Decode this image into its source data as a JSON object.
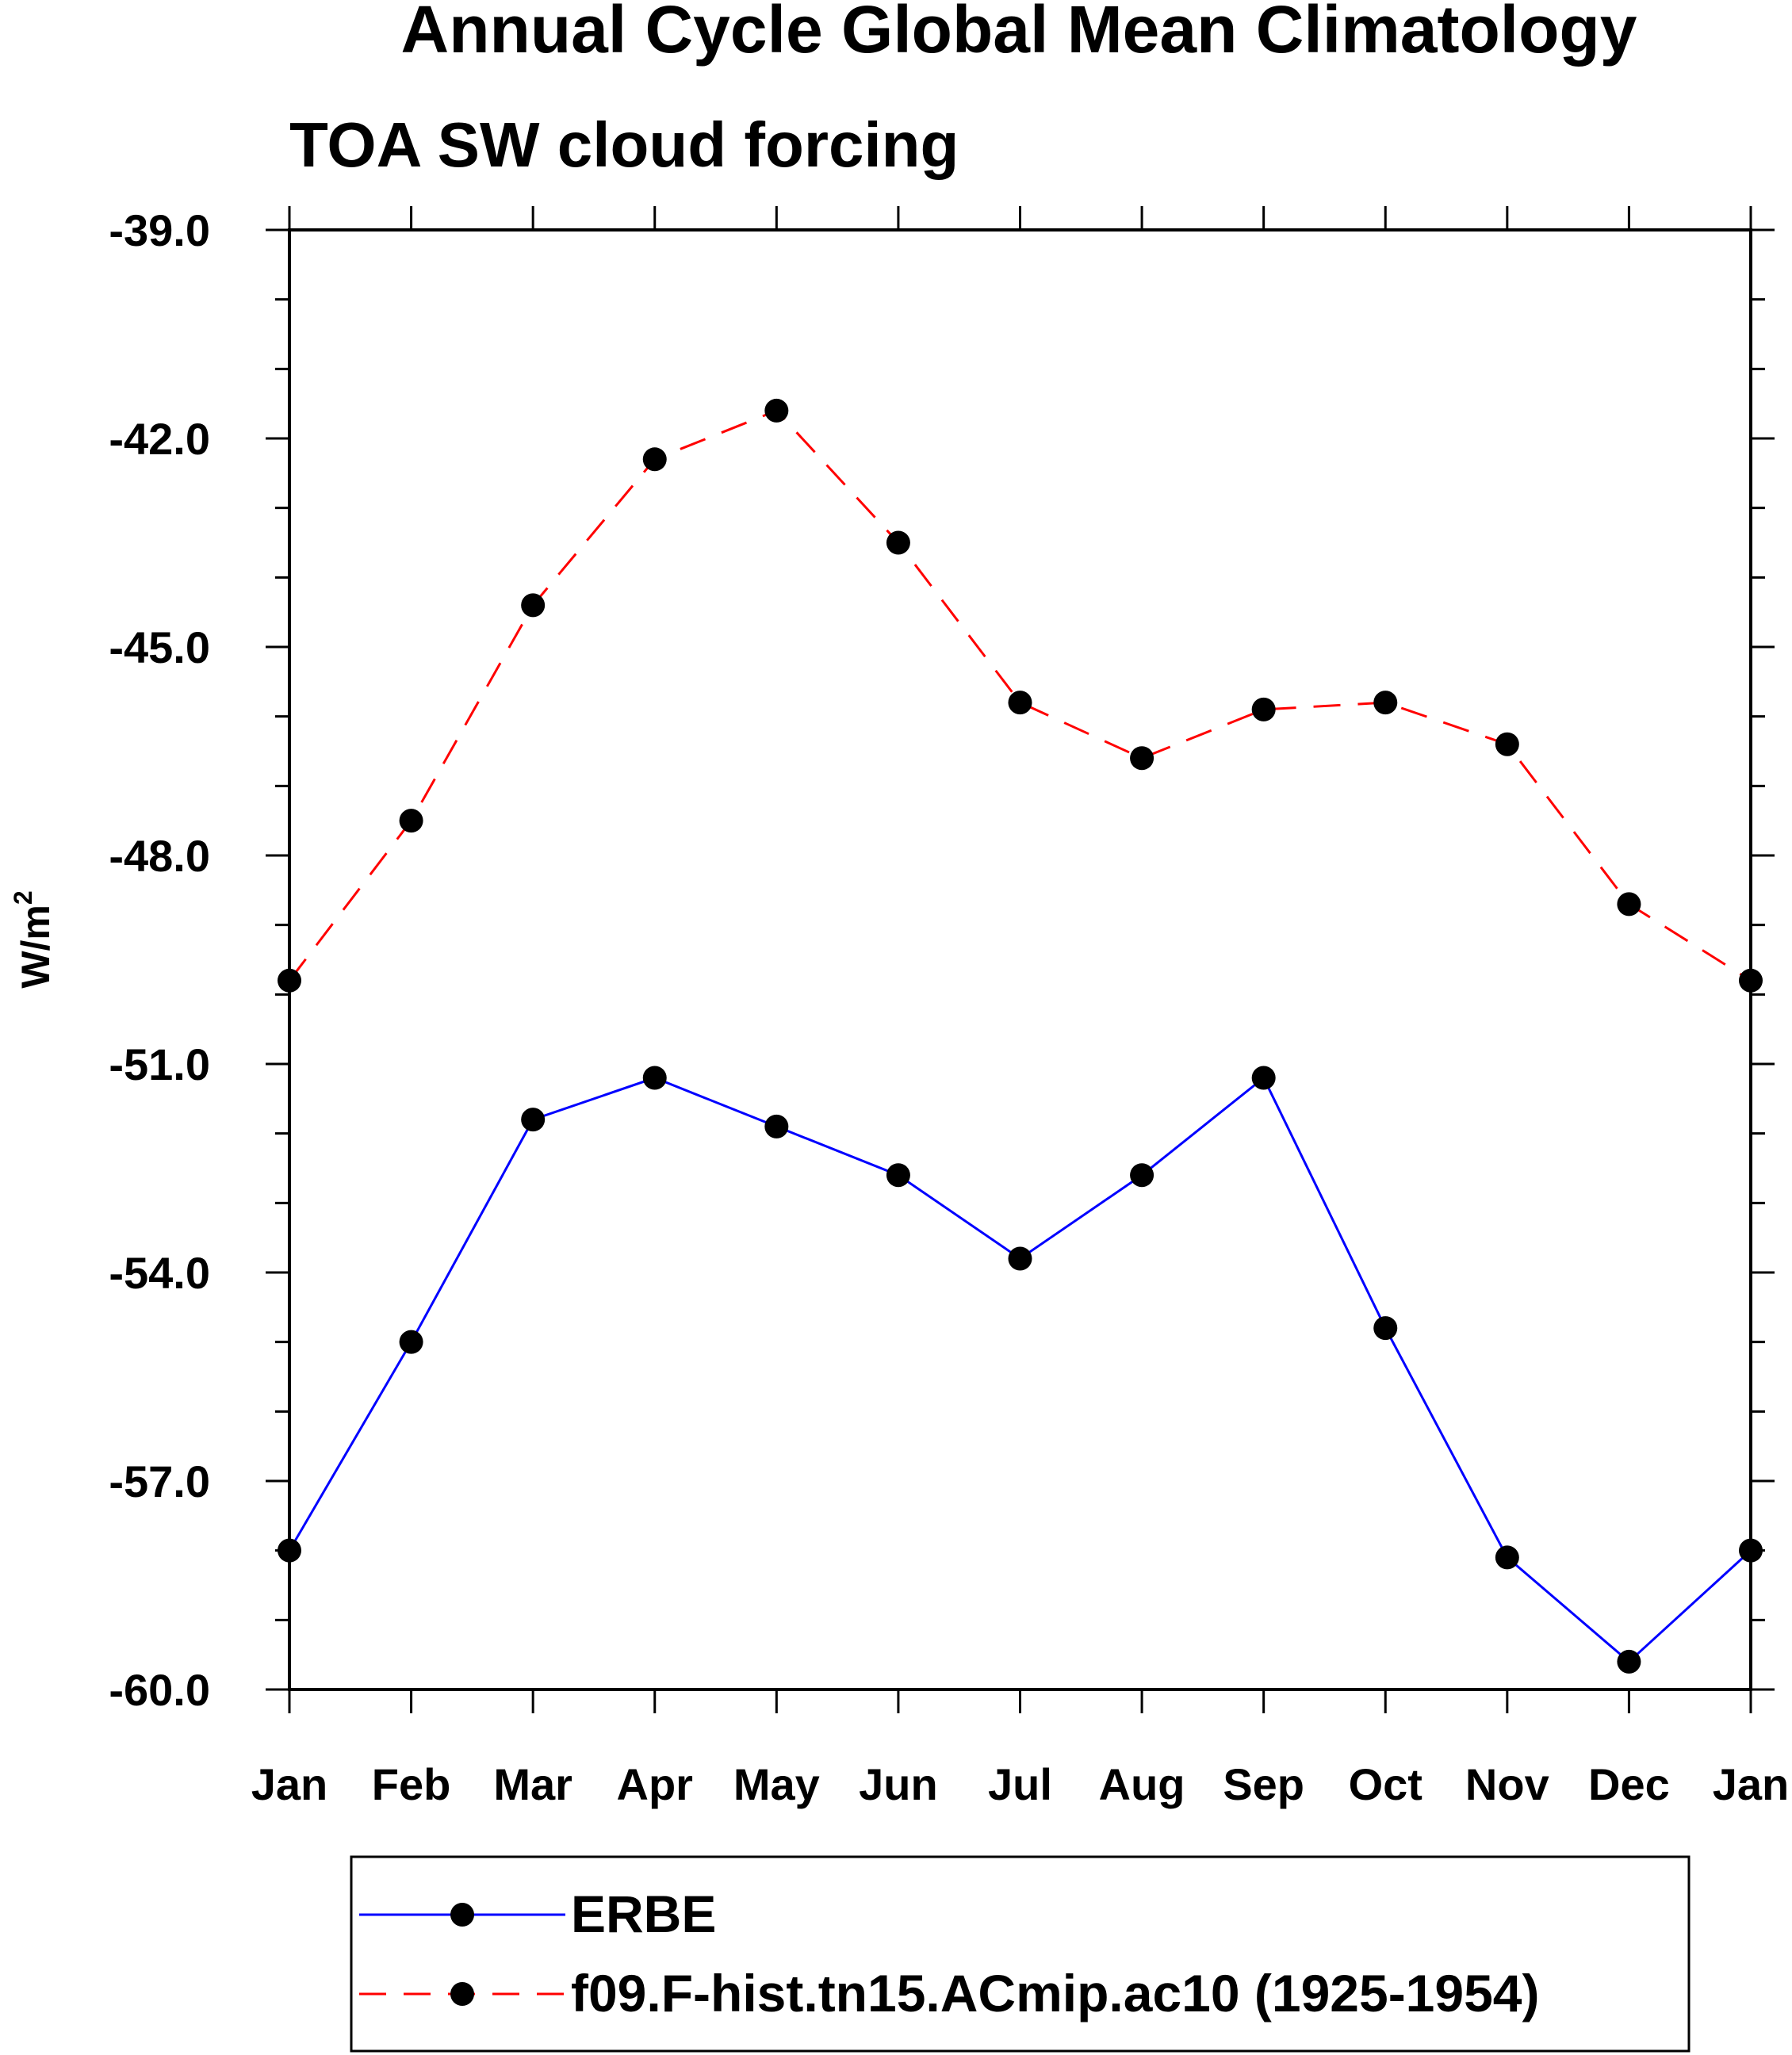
{
  "chart_data": {
    "type": "line",
    "title": "Annual Cycle Global Mean Climatology",
    "subtitle": "TOA SW cloud forcing",
    "xlabel": "",
    "ylabel": "W/m",
    "ylabel_superscript": "2",
    "categories": [
      "Jan",
      "Feb",
      "Mar",
      "Apr",
      "May",
      "Jun",
      "Jul",
      "Aug",
      "Sep",
      "Oct",
      "Nov",
      "Dec",
      "Jan"
    ],
    "ylim": [
      -60.0,
      -39.0
    ],
    "y_ticks": [
      "-39.0",
      "-42.0",
      "-45.0",
      "-48.0",
      "-51.0",
      "-54.0",
      "-57.0",
      "-60.0"
    ],
    "y_tick_values": [
      -39,
      -42,
      -45,
      -48,
      -51,
      -54,
      -57,
      -60
    ],
    "grid": false,
    "legend_position": "bottom",
    "series": [
      {
        "name": "ERBE",
        "color": "#0000ff",
        "dash": "solid",
        "values": [
          -58.0,
          -55.0,
          -51.8,
          -51.2,
          -51.9,
          -52.6,
          -53.8,
          -52.6,
          -51.2,
          -54.8,
          -58.1,
          -59.6,
          -58.0
        ]
      },
      {
        "name": "f09.F-hist.tn15.ACmip.ac10 (1925-1954)",
        "color": "#ff0000",
        "dash": "dashed",
        "values": [
          -49.8,
          -47.5,
          -44.4,
          -42.3,
          -41.6,
          -43.5,
          -45.8,
          -46.6,
          -45.9,
          -45.8,
          -46.4,
          -48.7,
          -49.8
        ]
      }
    ],
    "marker_color": "#000000"
  }
}
